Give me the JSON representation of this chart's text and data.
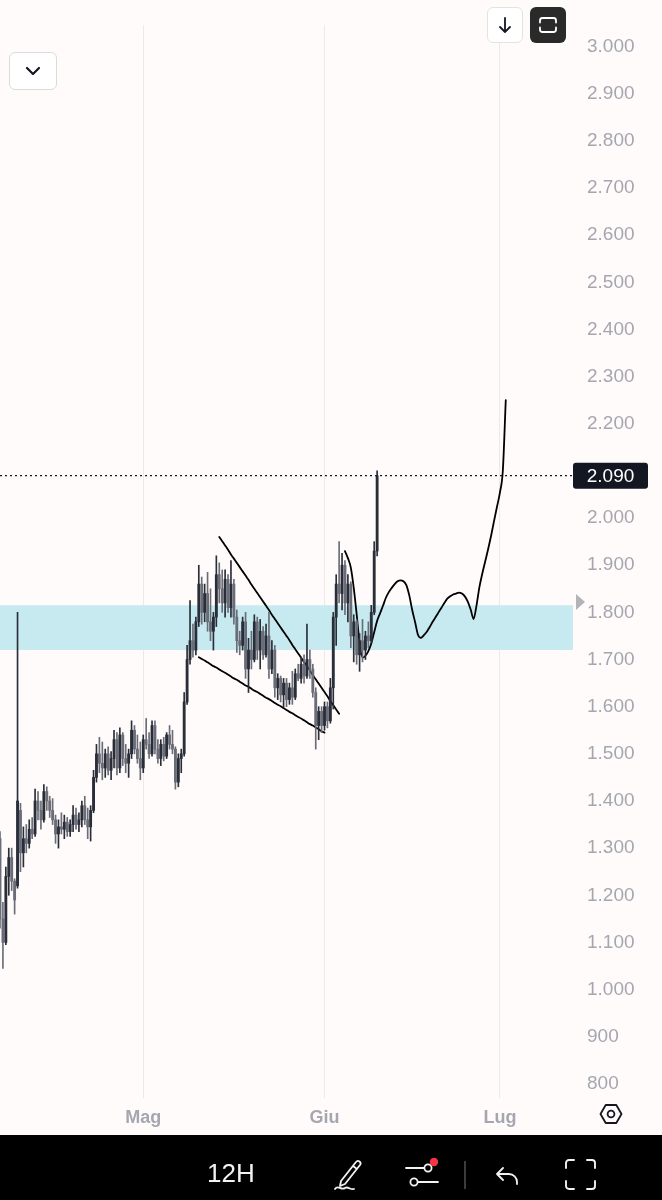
{
  "chart_data": {
    "type": "candlestick",
    "categories": [
      null,
      null,
      null,
      null,
      null,
      null,
      null,
      null,
      null,
      null,
      null,
      null,
      null,
      null,
      null,
      null,
      null,
      null,
      null,
      null,
      null,
      null,
      null,
      null,
      null,
      null,
      null,
      null,
      null,
      null,
      null,
      null,
      null,
      null,
      null,
      null,
      null,
      null,
      null,
      null,
      null,
      null,
      null,
      null,
      null,
      null,
      null,
      null,
      null,
      "Mag",
      null,
      null,
      null,
      null,
      null,
      null,
      null,
      null,
      null,
      null,
      null,
      null,
      null,
      null,
      null,
      null,
      null,
      null,
      null,
      null,
      null,
      null,
      null,
      null,
      null,
      null,
      null,
      null,
      null,
      null,
      null,
      null,
      null,
      null,
      null,
      null,
      null,
      null,
      null,
      null,
      null,
      null,
      null,
      null,
      null,
      null,
      null,
      null,
      null,
      null,
      null,
      null,
      null,
      null,
      null,
      null,
      null,
      null,
      null,
      null,
      null,
      "Giu",
      null,
      null,
      null,
      null,
      null,
      null,
      null,
      null,
      null,
      null,
      null,
      null,
      null,
      null,
      null,
      null,
      null,
      null,
      null,
      null,
      null,
      null,
      null,
      null,
      null,
      null,
      null,
      null,
      null,
      null,
      null,
      null,
      null,
      null,
      null,
      null,
      null,
      null,
      null,
      null,
      null,
      null,
      null,
      null,
      null,
      null,
      null,
      null,
      null,
      null,
      null,
      null,
      null,
      null,
      null,
      null,
      null,
      null,
      null,
      "Lug",
      null,
      null,
      null,
      null,
      null,
      null,
      null,
      null,
      null,
      null,
      null,
      null,
      null,
      null,
      null,
      null,
      null,
      null,
      null,
      null,
      null,
      null,
      null,
      null,
      null
    ],
    "series": [
      {
        "colors": [
          "#6a6d78",
          "#6a6d78",
          "#2a2e39",
          "#2a2e39",
          "#6a6d78",
          "#6a6d78",
          "#2a2e39",
          "#6a6d78",
          "#2a2e39",
          "#6a6d78",
          "#2a2e39",
          "#6a6d78",
          "#2a2e39",
          "#6a6d78",
          "#6a6d78",
          "#2a2e39",
          "#6a6d78",
          "#6a6d78",
          "#6a6d78",
          "#6a6d78",
          "#2a2e39",
          "#6a6d78",
          "#2a2e39",
          "#6a6d78",
          "#2a2e39",
          "#2a2e39",
          "#6a6d78",
          "#2a2e39",
          "#2a2e39",
          "#6a6d78",
          "#6a6d78",
          "#2a2e39",
          "#2a2e39",
          "#2a2e39",
          "#6a6d78",
          "#6a6d78",
          "#2a2e39",
          "#6a6d78",
          "#2a2e39",
          "#2a2e39",
          "#6a6d78",
          "#2a2e39",
          "#6a6d78",
          "#6a6d78",
          "#2a2e39",
          "#2a2e39",
          "#6a6d78",
          "#6a6d78",
          "#6a6d78",
          "#2a2e39",
          "#6a6d78",
          "#6a6d78",
          "#2a2e39",
          "#6a6d78",
          "#6a6d78",
          "#2a2e39",
          "#6a6d78",
          "#2a2e39",
          "#6a6d78",
          "#6a6d78",
          "#6a6d78",
          "#2a2e39",
          "#2a2e39",
          "#2a2e39",
          "#2a2e39",
          "#2a2e39",
          "#6a6d78",
          "#2a2e39",
          "#2a2e39",
          "#6a6d78",
          "#2a2e39",
          "#6a6d78",
          "#6a6d78",
          "#2a2e39",
          "#2a2e39",
          "#6a6d78",
          "#6a6d78",
          "#2a2e39",
          "#6a6d78",
          "#2a2e39",
          "#6a6d78",
          "#6a6d78",
          "#6a6d78",
          "#2a2e39",
          "#6a6d78",
          "#2a2e39",
          "#6a6d78",
          "#2a2e39",
          "#6a6d78",
          "#2a2e39",
          "#6a6d78",
          "#2a2e39",
          "#6a6d78",
          "#2a2e39",
          "#6a6d78",
          "#2a2e39",
          "#6a6d78",
          "#2a2e39",
          "#6a6d78",
          "#2a2e39",
          "#6a6d78",
          "#2a2e39",
          "#6a6d78",
          "#2a2e39",
          "#6a6d78",
          "#2a2e39",
          "#6a6d78",
          "#6a6d78",
          "#6a6d78",
          "#2a2e39",
          "#6a6d78",
          "#2a2e39",
          "#6a6d78",
          "#2a2e39",
          "#2a2e39",
          "#2a2e39",
          "#6a6d78",
          "#2a2e39",
          "#6a6d78",
          "#2a2e39",
          "#6a6d78",
          "#2a2e39",
          "#6a6d78",
          "#2a2e39",
          "#6a6d78",
          "#2a2e39",
          "#6a6d78",
          "#2a2e39",
          "#2a2e39",
          "#2a2e39",
          null,
          null,
          null,
          null,
          null,
          null,
          null,
          null,
          null,
          null,
          null,
          null,
          null,
          null,
          null,
          null,
          null,
          null,
          null,
          null,
          null,
          null,
          null,
          null,
          null,
          null,
          null,
          null,
          null,
          null,
          null,
          null,
          null,
          null,
          null,
          null,
          null,
          null,
          null,
          null,
          null,
          null,
          null,
          null,
          null,
          null,
          null,
          null,
          null,
          null,
          null,
          null,
          null,
          null,
          null,
          null,
          null,
          null,
          null,
          null,
          null,
          null,
          null,
          null,
          null,
          null,
          null
        ],
        "ohlc": [
          [
            1320,
            1335,
            1130,
            1150
          ],
          [
            1150,
            1185,
            1045,
            1100
          ],
          [
            1100,
            1260,
            1095,
            1240
          ],
          [
            1240,
            1300,
            1200,
            1280
          ],
          [
            1280,
            1300,
            1210,
            1230
          ],
          [
            1230,
            1235,
            1160,
            1190
          ],
          [
            1220,
            1800,
            1215,
            1400
          ],
          [
            1380,
            1395,
            1250,
            1290
          ],
          [
            1290,
            1345,
            1260,
            1320
          ],
          [
            1320,
            1350,
            1290,
            1310
          ],
          [
            1310,
            1360,
            1300,
            1340
          ],
          [
            1340,
            1365,
            1320,
            1330
          ],
          [
            1330,
            1425,
            1325,
            1400
          ],
          [
            1400,
            1420,
            1360,
            1380
          ],
          [
            1380,
            1400,
            1340,
            1360
          ],
          [
            1360,
            1435,
            1355,
            1420
          ],
          [
            1420,
            1430,
            1380,
            1400
          ],
          [
            1400,
            1410,
            1365,
            1380
          ],
          [
            1380,
            1405,
            1350,
            1360
          ],
          [
            1360,
            1370,
            1310,
            1330
          ],
          [
            1330,
            1360,
            1300,
            1345
          ],
          [
            1345,
            1375,
            1330,
            1340
          ],
          [
            1340,
            1370,
            1320,
            1355
          ],
          [
            1355,
            1365,
            1325,
            1335
          ],
          [
            1335,
            1360,
            1325,
            1350
          ],
          [
            1350,
            1390,
            1335,
            1370
          ],
          [
            1370,
            1385,
            1340,
            1350
          ],
          [
            1350,
            1375,
            1335,
            1360
          ],
          [
            1360,
            1400,
            1345,
            1390
          ],
          [
            1390,
            1410,
            1350,
            1360
          ],
          [
            1360,
            1385,
            1320,
            1345
          ],
          [
            1345,
            1390,
            1315,
            1380
          ],
          [
            1380,
            1465,
            1375,
            1450
          ],
          [
            1450,
            1520,
            1440,
            1500
          ],
          [
            1500,
            1535,
            1460,
            1480
          ],
          [
            1480,
            1525,
            1445,
            1470
          ],
          [
            1470,
            1510,
            1450,
            1500
          ],
          [
            1500,
            1515,
            1455,
            1465
          ],
          [
            1465,
            1505,
            1445,
            1490
          ],
          [
            1490,
            1550,
            1470,
            1530
          ],
          [
            1530,
            1545,
            1455,
            1470
          ],
          [
            1470,
            1555,
            1460,
            1540
          ],
          [
            1540,
            1545,
            1475,
            1490
          ],
          [
            1490,
            1520,
            1460,
            1480
          ],
          [
            1480,
            1510,
            1450,
            1500
          ],
          [
            1500,
            1570,
            1490,
            1550
          ],
          [
            1550,
            1560,
            1500,
            1510
          ],
          [
            1510,
            1540,
            1480,
            1490
          ],
          [
            1490,
            1525,
            1445,
            1470
          ],
          [
            1470,
            1540,
            1460,
            1530
          ],
          [
            1530,
            1575,
            1510,
            1520
          ],
          [
            1520,
            1545,
            1490,
            1500
          ],
          [
            1500,
            1570,
            1495,
            1560
          ],
          [
            1560,
            1570,
            1500,
            1510
          ],
          [
            1510,
            1530,
            1480,
            1490
          ],
          [
            1490,
            1530,
            1475,
            1520
          ],
          [
            1520,
            1535,
            1485,
            1495
          ],
          [
            1495,
            1545,
            1490,
            1540
          ],
          [
            1540,
            1560,
            1510,
            1520
          ],
          [
            1520,
            1550,
            1500,
            1510
          ],
          [
            1510,
            1515,
            1425,
            1440
          ],
          [
            1440,
            1500,
            1430,
            1490
          ],
          [
            1490,
            1510,
            1460,
            1500
          ],
          [
            1500,
            1630,
            1495,
            1610
          ],
          [
            1610,
            1730,
            1605,
            1700
          ],
          [
            1700,
            1825,
            1690,
            1740
          ],
          [
            1740,
            1775,
            1705,
            1720
          ],
          [
            1720,
            1790,
            1710,
            1780
          ],
          [
            1780,
            1900,
            1770,
            1860
          ],
          [
            1860,
            1875,
            1775,
            1800
          ],
          [
            1800,
            1860,
            1780,
            1840
          ],
          [
            1840,
            1885,
            1760,
            1780
          ],
          [
            1780,
            1850,
            1740,
            1760
          ],
          [
            1760,
            1800,
            1720,
            1790
          ],
          [
            1790,
            1920,
            1770,
            1880
          ],
          [
            1880,
            1905,
            1820,
            1850
          ],
          [
            1850,
            1890,
            1800,
            1820
          ],
          [
            1820,
            1890,
            1790,
            1870
          ],
          [
            1870,
            1880,
            1800,
            1810
          ],
          [
            1810,
            1910,
            1790,
            1860
          ],
          [
            1860,
            1870,
            1775,
            1790
          ],
          [
            1790,
            1805,
            1715,
            1740
          ],
          [
            1740,
            1760,
            1710,
            1730
          ],
          [
            1730,
            1790,
            1720,
            1780
          ],
          [
            1780,
            1800,
            1660,
            1680
          ],
          [
            1680,
            1745,
            1630,
            1720
          ],
          [
            1720,
            1760,
            1680,
            1700
          ],
          [
            1700,
            1795,
            1695,
            1780
          ],
          [
            1780,
            1790,
            1700,
            1720
          ],
          [
            1720,
            1785,
            1680,
            1760
          ],
          [
            1760,
            1770,
            1700,
            1710
          ],
          [
            1710,
            1775,
            1705,
            1750
          ],
          [
            1750,
            1800,
            1660,
            1680
          ],
          [
            1680,
            1740,
            1670,
            1720
          ],
          [
            1720,
            1730,
            1620,
            1640
          ],
          [
            1640,
            1670,
            1615,
            1660
          ],
          [
            1660,
            1665,
            1610,
            1625
          ],
          [
            1625,
            1660,
            1600,
            1650
          ],
          [
            1650,
            1660,
            1600,
            1615
          ],
          [
            1615,
            1650,
            1605,
            1640
          ],
          [
            1640,
            1675,
            1605,
            1620
          ],
          [
            1620,
            1680,
            1615,
            1670
          ],
          [
            1670,
            1690,
            1655,
            1660
          ],
          [
            1660,
            1705,
            1650,
            1690
          ],
          [
            1690,
            1710,
            1650,
            1665
          ],
          [
            1665,
            1775,
            1660,
            1700
          ],
          [
            1700,
            1720,
            1660,
            1680
          ],
          [
            1680,
            1690,
            1620,
            1630
          ],
          [
            1630,
            1640,
            1510,
            1560
          ],
          [
            1560,
            1600,
            1530,
            1590
          ],
          [
            1590,
            1600,
            1545,
            1560
          ],
          [
            1560,
            1610,
            1550,
            1600
          ],
          [
            1600,
            1610,
            1555,
            1570
          ],
          [
            1570,
            1660,
            1565,
            1640
          ],
          [
            1640,
            1800,
            1595,
            1790
          ],
          [
            1790,
            1880,
            1730,
            1860
          ],
          [
            1860,
            1950,
            1820,
            1840
          ],
          [
            1840,
            1925,
            1805,
            1900
          ],
          [
            1900,
            1910,
            1795,
            1820
          ],
          [
            1820,
            1880,
            1780,
            1860
          ],
          [
            1860,
            1865,
            1725,
            1750
          ],
          [
            1750,
            1795,
            1695,
            1780
          ],
          [
            1780,
            1785,
            1690,
            1710
          ],
          [
            1710,
            1755,
            1675,
            1740
          ],
          [
            1740,
            1785,
            1695,
            1720
          ],
          [
            1720,
            1760,
            1700,
            1750
          ],
          [
            1750,
            1780,
            1725,
            1740
          ],
          [
            1740,
            1815,
            1735,
            1800
          ],
          [
            1800,
            1950,
            1795,
            1930
          ],
          [
            1930,
            2100,
            1920,
            2090
          ],
          null,
          null,
          null,
          null,
          null,
          null,
          null,
          null,
          null,
          null,
          null,
          null,
          null,
          null,
          null,
          null,
          null,
          null,
          null,
          null,
          null,
          null,
          null,
          null,
          null,
          null,
          null,
          null,
          null,
          null,
          null,
          null,
          null,
          null,
          null,
          null,
          null,
          null,
          null,
          null,
          null,
          null,
          null,
          null,
          null,
          null,
          null,
          null,
          null,
          null,
          null,
          null,
          null,
          null,
          null,
          null,
          null,
          null,
          null,
          null,
          null,
          null,
          null,
          null,
          null,
          null,
          null
        ]
      },
      {
        "type": "line",
        "color": "#000000",
        "values": [
          null,
          null,
          null,
          null,
          null,
          null,
          null,
          null,
          null,
          null,
          null,
          null,
          null,
          null,
          null,
          null,
          null,
          null,
          null,
          null,
          null,
          null,
          null,
          null,
          null,
          null,
          null,
          null,
          null,
          null,
          null,
          null,
          null,
          null,
          null,
          null,
          null,
          null,
          null,
          null,
          null,
          null,
          null,
          null,
          null,
          null,
          null,
          null,
          null,
          null,
          null,
          null,
          null,
          null,
          null,
          null,
          null,
          null,
          null,
          null,
          null,
          null,
          null,
          null,
          null,
          null,
          null,
          null,
          null,
          null,
          null,
          null,
          null,
          null,
          null,
          1960,
          1951,
          1942,
          1933,
          1923,
          1914,
          1905,
          1896,
          1887,
          1878,
          1869,
          1859,
          1850,
          1841,
          1832,
          1823,
          1814,
          1805,
          1795,
          1786,
          1777,
          1768,
          1759,
          1750,
          1741,
          1731,
          1722,
          1713,
          1704,
          1695,
          1686,
          1677,
          1667,
          1658,
          1649,
          1640,
          1631,
          1622,
          1612,
          1603,
          1594,
          1585,
          null,
          null,
          null,
          null,
          null,
          null,
          null,
          null,
          null,
          null,
          null,
          null,
          null,
          null,
          null,
          null,
          null,
          null,
          null,
          null,
          null,
          null,
          null,
          null,
          null,
          null,
          null,
          null,
          null,
          null,
          null,
          null,
          null,
          null,
          null,
          null,
          null,
          null,
          null,
          null,
          null,
          null,
          null,
          null,
          null,
          null,
          null,
          null,
          null,
          null,
          null,
          null,
          null,
          null,
          null,
          null,
          null,
          null,
          null,
          null,
          null,
          null,
          null,
          null,
          null,
          null,
          null,
          null,
          null,
          null,
          null,
          null,
          null,
          null,
          null,
          null,
          null,
          null,
          null,
          null
        ]
      },
      {
        "type": "line",
        "color": "#000000",
        "values": [
          null,
          null,
          null,
          null,
          null,
          null,
          null,
          null,
          null,
          null,
          null,
          null,
          null,
          null,
          null,
          null,
          null,
          null,
          null,
          null,
          null,
          null,
          null,
          null,
          null,
          null,
          null,
          null,
          null,
          null,
          null,
          null,
          null,
          null,
          null,
          null,
          null,
          null,
          null,
          null,
          null,
          null,
          null,
          null,
          null,
          null,
          null,
          null,
          null,
          null,
          null,
          null,
          null,
          null,
          null,
          null,
          null,
          null,
          null,
          null,
          null,
          null,
          null,
          null,
          null,
          null,
          null,
          null,
          1705,
          1701,
          1698,
          1694,
          1690,
          1686,
          1683,
          1679,
          1675,
          1672,
          1668,
          1664,
          1660,
          1657,
          1653,
          1649,
          1645,
          1642,
          1638,
          1634,
          1631,
          1627,
          1623,
          1619,
          1616,
          1612,
          1608,
          1604,
          1601,
          1597,
          1593,
          1589,
          1586,
          1582,
          1578,
          1575,
          1571,
          1567,
          1563,
          1560,
          1556,
          1552,
          1548,
          1545,
          null,
          null,
          null,
          null,
          null,
          null,
          null,
          null,
          null,
          null,
          null,
          null,
          null,
          null,
          null,
          null,
          null,
          null,
          null,
          null,
          null,
          null,
          null,
          null,
          null,
          null,
          null,
          null,
          null,
          null,
          null,
          null,
          null,
          null,
          null,
          null,
          null,
          null,
          null,
          null,
          null,
          null,
          null,
          null,
          null,
          null,
          null,
          null,
          null,
          null,
          null,
          null,
          null,
          null,
          null,
          null,
          null,
          null,
          null,
          null,
          null,
          null,
          null,
          null,
          null,
          null,
          null,
          null,
          null,
          null,
          null,
          null,
          null,
          null,
          null,
          null,
          null,
          null,
          null,
          null,
          null,
          null,
          null,
          null,
          null
        ]
      },
      {
        "type": "line",
        "color": "#000000",
        "values": [
          null,
          null,
          null,
          null,
          null,
          null,
          null,
          null,
          null,
          null,
          null,
          null,
          null,
          null,
          null,
          null,
          null,
          null,
          null,
          null,
          null,
          null,
          null,
          null,
          null,
          null,
          null,
          null,
          null,
          null,
          null,
          null,
          null,
          null,
          null,
          null,
          null,
          null,
          null,
          null,
          null,
          null,
          null,
          null,
          null,
          null,
          null,
          null,
          null,
          null,
          null,
          null,
          null,
          null,
          null,
          null,
          null,
          null,
          null,
          null,
          null,
          null,
          null,
          null,
          null,
          null,
          null,
          null,
          null,
          null,
          null,
          null,
          null,
          null,
          null,
          null,
          null,
          null,
          null,
          null,
          null,
          null,
          null,
          null,
          null,
          null,
          null,
          null,
          null,
          null,
          null,
          null,
          null,
          null,
          null,
          null,
          null,
          null,
          null,
          null,
          null,
          null,
          null,
          null,
          null,
          null,
          null,
          null,
          null,
          null,
          null,
          null,
          null,
          null,
          null,
          null,
          null,
          null,
          1930,
          1915,
          1895,
          1852,
          1796,
          1735,
          1704,
          1708,
          1718,
          1734,
          1758,
          1782,
          1798,
          1814,
          1831,
          1843,
          1852,
          1860,
          1866,
          1868,
          1866,
          1858,
          1836,
          1805,
          1779,
          1752,
          1746,
          1752,
          1759,
          1769,
          1780,
          1790,
          1800,
          1810,
          1820,
          1829,
          1834,
          1838,
          1840,
          1842,
          1840,
          1834,
          1823,
          1806,
          1786,
          1815,
          1854,
          1883,
          1909,
          1935,
          1963,
          1994,
          2024,
          2054,
          2101,
          2250,
          null,
          null,
          null,
          null,
          null,
          null,
          null,
          null,
          null,
          null,
          null,
          null,
          null,
          null,
          null,
          null,
          null,
          null,
          null,
          null,
          null,
          null,
          null
        ]
      }
    ],
    "ylim": [
      770,
      3045
    ],
    "yticks": [
      800,
      900,
      {
        "value": 1000,
        "label": "1.000"
      },
      {
        "value": 1100,
        "label": "1.100"
      },
      {
        "value": 1200,
        "label": "1.200"
      },
      {
        "value": 1300,
        "label": "1.300"
      },
      {
        "value": 1400,
        "label": "1.400"
      },
      {
        "value": 1500,
        "label": "1.500"
      },
      {
        "value": 1600,
        "label": "1.600"
      },
      {
        "value": 1700,
        "label": "1.700"
      },
      {
        "value": 1800,
        "label": "1.800"
      },
      {
        "value": 1900,
        "label": "1.900"
      },
      {
        "value": 2000,
        "label": "2.000"
      },
      {
        "value": 2200,
        "label": "2.200"
      },
      {
        "value": 2300,
        "label": "2.300"
      },
      {
        "value": 2400,
        "label": "2.400"
      },
      {
        "value": 2500,
        "label": "2.500"
      },
      {
        "value": 2600,
        "label": "2.600"
      },
      {
        "value": 2700,
        "label": "2.700"
      },
      {
        "value": 2800,
        "label": "2.800"
      },
      {
        "value": 2900,
        "label": "2.900"
      },
      {
        "value": 3000,
        "label": "3.000"
      }
    ],
    "grid": "x",
    "ref_lines": [
      {
        "axis": "y",
        "value": 2090,
        "label": "2.090",
        "color": "#131722",
        "line_style": "dotted"
      }
    ],
    "bands": [
      {
        "axis": "y",
        "from": 1720,
        "to": 1815,
        "color": "#c6eaf0"
      }
    ],
    "annotations": [
      "12H"
    ]
  }
}
